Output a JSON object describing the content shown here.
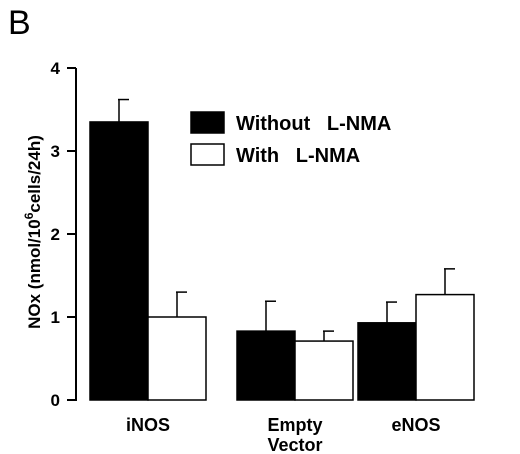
{
  "panel_label": "B",
  "chart_data": {
    "type": "bar",
    "categories": [
      [
        "iNOS"
      ],
      [
        "Empty",
        "Vector"
      ],
      [
        "eNOS"
      ]
    ],
    "series": [
      {
        "name": "Without   L-NMA",
        "color": "#000000",
        "values": [
          3.35,
          0.83,
          0.93
        ],
        "errors": [
          0.27,
          0.36,
          0.25
        ]
      },
      {
        "name": "With   L-NMA",
        "color": "#ffffff",
        "values": [
          1.0,
          0.71,
          1.27
        ],
        "errors": [
          0.3,
          0.12,
          0.31
        ]
      }
    ],
    "ylabel": {
      "prefix": "NOx  (nmol/10",
      "sup": "6",
      "suffix": "cells/24h)"
    },
    "ylim": [
      0,
      4
    ],
    "yticks": [
      "0",
      "1",
      "2",
      "3",
      "4"
    ],
    "grid": false,
    "legend_position": "top-right"
  }
}
